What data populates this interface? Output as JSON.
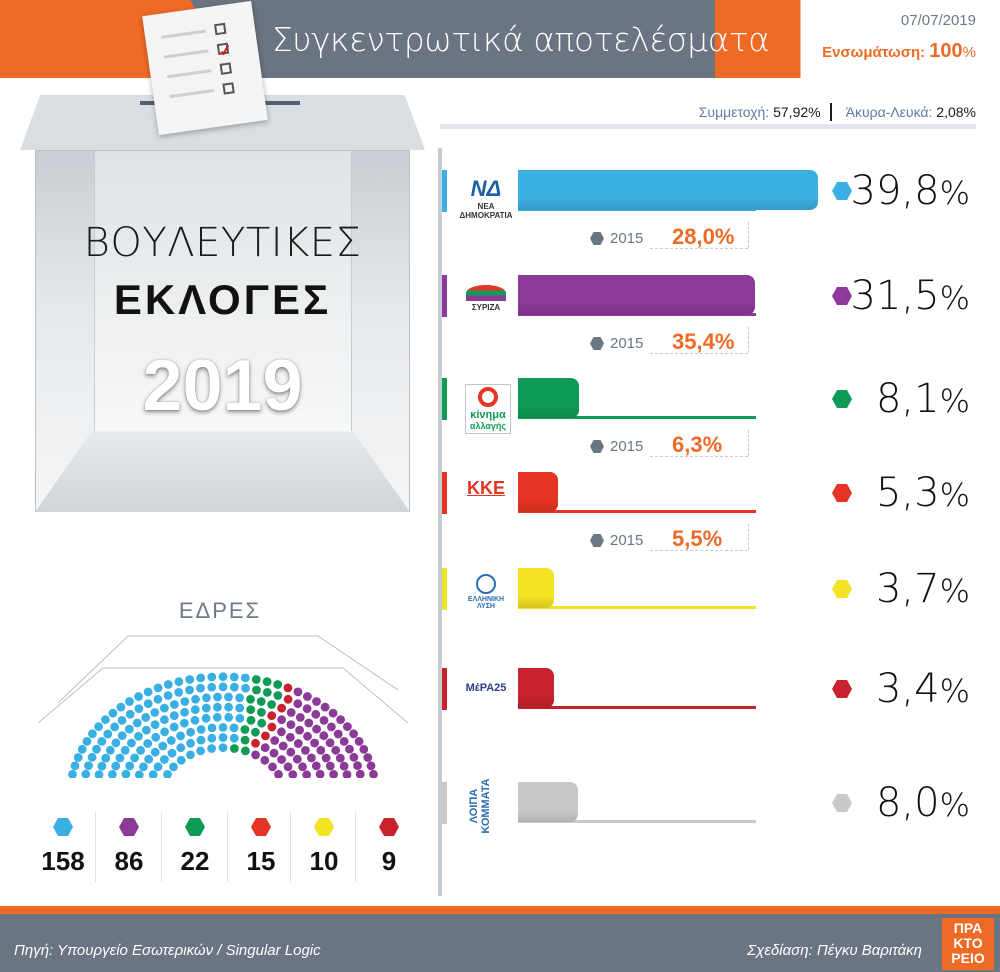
{
  "header": {
    "title": "Συγκεντρωτικά αποτελέσματα",
    "date": "07/07/2019",
    "integration_label": "Ενσωμάτωση:",
    "integration_value": "100",
    "integration_unit": "%"
  },
  "box": {
    "line1": "ΒΟΥΛΕΥΤΙΚΕΣ",
    "line2": "ΕΚΛΟΓΕΣ",
    "year": "2019"
  },
  "participation": {
    "turnout_label": "Συμμετοχή:",
    "turnout_value": "57,92%",
    "invalid_label": "Άκυρα-Λευκά:",
    "invalid_value": "2,08%"
  },
  "parties": [
    {
      "logo": "ΝΔ",
      "logo_sub": "ΝΕΑ ΔΗΜΟΚΡΑΤΙΑ",
      "color": "#3aafe3",
      "pct_num": "39,8",
      "bar_value": 39.8,
      "prev_year": "2015",
      "prev_num": "28,0"
    },
    {
      "logo": "",
      "logo_sub": "ΣΥΡΙΖΑ",
      "color": "#8b3a98",
      "pct_num": "31,5",
      "bar_value": 31.5,
      "prev_year": "2015",
      "prev_num": "35,4"
    },
    {
      "logo": "κίνημα",
      "logo_sub": "αλλαγής",
      "color": "#0f9a55",
      "pct_num": "8,1",
      "bar_value": 8.1,
      "prev_year": "2015",
      "prev_num": "6,3"
    },
    {
      "logo": "ΚΚΕ",
      "logo_sub": "",
      "color": "#e53423",
      "pct_num": "5,3",
      "bar_value": 5.3,
      "prev_year": "2015",
      "prev_num": "5,5"
    },
    {
      "logo": "ΕΛΛΗΝΙΚΗ",
      "logo_sub": "ΛΥΣΗ",
      "color": "#f4e224",
      "pct_num": "3,7",
      "bar_value": 3.7
    },
    {
      "logo": "ΜέΡΑ25",
      "logo_sub": "",
      "color": "#c8232c",
      "pct_num": "3,4",
      "bar_value": 3.4
    },
    {
      "logo": "ΛΟΙΠΑ",
      "logo_sub": "ΚΟΜΜΑΤΑ",
      "color": "#c9c9c9",
      "pct_num": "8,0",
      "bar_value": 8.0
    }
  ],
  "pct_unit": "%",
  "seats": {
    "title": "ΕΔΡΕΣ",
    "items": [
      {
        "color": "#3aafe3",
        "count": "158",
        "value": 158
      },
      {
        "color": "#8b3a98",
        "count": "86",
        "value": 86
      },
      {
        "color": "#0f9a55",
        "count": "22",
        "value": 22
      },
      {
        "color": "#e53423",
        "count": "15",
        "value": 15
      },
      {
        "color": "#f4e224",
        "count": "10",
        "value": 10
      },
      {
        "color": "#c8232c",
        "count": "9",
        "value": 9
      }
    ]
  },
  "footer": {
    "source": "Πηγή: Υπουργείο Εσωτερικών / Singular Logic",
    "design": "Σχεδίαση: Πέγκυ Βαριτάκη",
    "logo_line1": "ΠΡΑ",
    "logo_line2": "ΚΤΟ",
    "logo_line3": "ΡΕΙΟ"
  }
}
